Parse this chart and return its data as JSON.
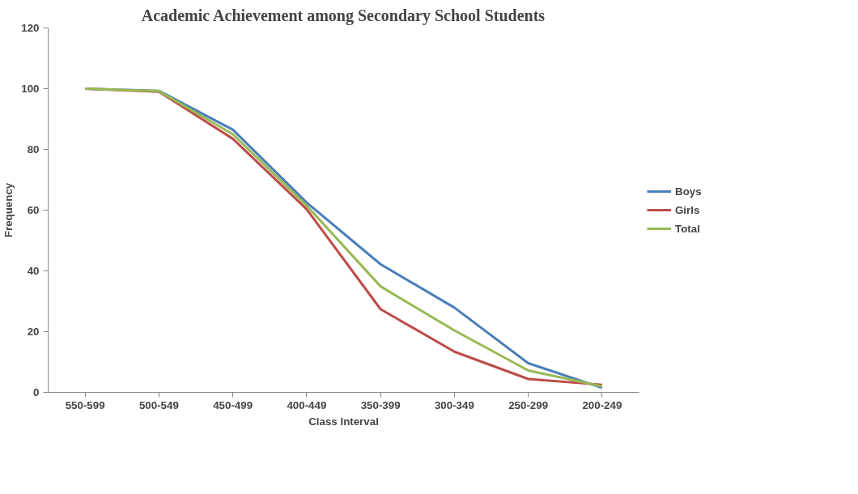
{
  "chart_data": {
    "type": "line",
    "title": "Academic Achievement among Secondary School Students",
    "xlabel": "Class Interval",
    "ylabel": "Frequency",
    "categories": [
      "550-599",
      "500-549",
      "450-499",
      "400-449",
      "350-399",
      "300-349",
      "250-299",
      "200-249"
    ],
    "series": [
      {
        "name": "Boys",
        "color": "#4a7ebb",
        "values": [
          100,
          99.3,
          86.5,
          62.5,
          42.2,
          27.9,
          9.6,
          1.5
        ]
      },
      {
        "name": "Girls",
        "color": "#be4b48",
        "values": [
          100,
          99,
          83.5,
          60.3,
          27.4,
          13.4,
          4.4,
          2.5
        ]
      },
      {
        "name": "Total",
        "color": "#98b954",
        "values": [
          100,
          99.2,
          85,
          61.5,
          34.9,
          20.4,
          7.2,
          2
        ]
      }
    ],
    "ylim": [
      0,
      120
    ],
    "yticks": [
      0,
      20,
      40,
      60,
      80,
      100,
      120
    ],
    "grid": false,
    "legend": "right",
    "marker": "none",
    "line_style": "solid"
  }
}
